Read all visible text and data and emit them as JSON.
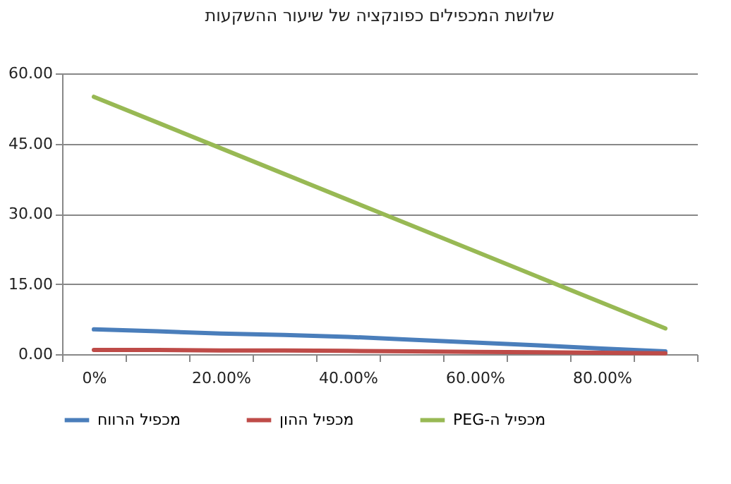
{
  "chart_data": {
    "type": "line",
    "title": "שלושת המכפילים כפונקציה של שיעור ההשקעות",
    "categories": [
      "0%",
      null,
      "20.00%",
      null,
      "40.00%",
      null,
      "60.00%",
      null,
      "80.00%",
      null
    ],
    "series": [
      {
        "name": "מכפיל הרווח",
        "color": "#4a7ebb",
        "values": [
          5.3,
          4.9,
          4.4,
          4.1,
          3.7,
          3.1,
          2.5,
          1.9,
          1.2,
          0.6
        ]
      },
      {
        "name": "מכפיל ההון",
        "color": "#be4b48",
        "values": [
          0.9,
          0.9,
          0.8,
          0.8,
          0.7,
          0.6,
          0.5,
          0.4,
          0.3,
          0.2
        ]
      },
      {
        "name": "מכפיל ה-PEG",
        "color": "#98b954",
        "values": [
          55,
          49.5,
          44,
          38.5,
          33,
          27.5,
          22,
          16.5,
          11,
          5.5
        ]
      }
    ],
    "ylim": [
      0,
      60
    ],
    "yticks": [
      {
        "value": 0,
        "label": "0.00"
      },
      {
        "value": 15,
        "label": "15.00"
      },
      {
        "value": 30,
        "label": "30.00"
      },
      {
        "value": 45,
        "label": "45.00"
      },
      {
        "value": 60,
        "label": "60.00"
      }
    ],
    "grid": "y",
    "legend": "bottom",
    "marker": "none",
    "line_style": "solid"
  }
}
